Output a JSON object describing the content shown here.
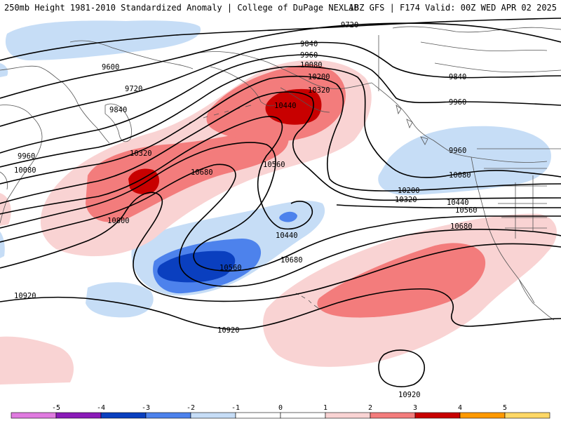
{
  "header": {
    "left": "250mb Height 1981-2010 Standardized Anomaly | College of DuPage NEXLAB",
    "right": "18Z GFS | F174 Valid: 00Z WED APR 02 2025"
  },
  "colors": {
    "neg5": "#e07be0",
    "neg4": "#8a1bb8",
    "neg3": "#0a3fbf",
    "neg2": "#4d82ec",
    "neg1": "#c6ddf6",
    "pos1": "#f9d3d3",
    "pos2": "#f37c7c",
    "pos3": "#c80000",
    "pos4": "#ff9900",
    "pos5": "#ffd866",
    "land": "#555555",
    "contour": "#000000"
  },
  "contour_labels": [
    {
      "id": "c9720-top",
      "text": "9720"
    },
    {
      "id": "c9840-top",
      "text": "9840"
    },
    {
      "id": "c9960-top",
      "text": "9960"
    },
    {
      "id": "c10080-top",
      "text": "10080"
    },
    {
      "id": "c10200-top",
      "text": "10200"
    },
    {
      "id": "c10320-top",
      "text": "10320"
    },
    {
      "id": "c10440-top",
      "text": "10440"
    },
    {
      "id": "c9600-left",
      "text": "9600"
    },
    {
      "id": "c9720-left",
      "text": "9720"
    },
    {
      "id": "c9840-left",
      "text": "9840"
    },
    {
      "id": "c9960-left",
      "text": "9960"
    },
    {
      "id": "c10080-left",
      "text": "10080"
    },
    {
      "id": "c10320-mid",
      "text": "10320"
    },
    {
      "id": "c10680-mid",
      "text": "10680"
    },
    {
      "id": "c10560-mid",
      "text": "10560"
    },
    {
      "id": "c10800-left",
      "text": "10800"
    },
    {
      "id": "c10440-low",
      "text": "10440"
    },
    {
      "id": "c10560-low",
      "text": "10560"
    },
    {
      "id": "c10680-low",
      "text": "10680"
    },
    {
      "id": "c10920-left",
      "text": "10920"
    },
    {
      "id": "c10920-mid",
      "text": "10920"
    },
    {
      "id": "c10920-bot",
      "text": "10920"
    },
    {
      "id": "c9840-right",
      "text": "9840"
    },
    {
      "id": "c9960-right",
      "text": "9960"
    },
    {
      "id": "c9960-east",
      "text": "9960"
    },
    {
      "id": "c10080-east",
      "text": "10080"
    },
    {
      "id": "c10200-east",
      "text": "10200"
    },
    {
      "id": "c10320-east",
      "text": "10320"
    },
    {
      "id": "c10440-east",
      "text": "10440"
    },
    {
      "id": "c10560-east",
      "text": "10560"
    },
    {
      "id": "c10680-east",
      "text": "10680"
    }
  ],
  "colorbar": {
    "ticks": [
      "-5",
      "-4",
      "-3",
      "-2",
      "-1",
      "0",
      "1",
      "2",
      "3",
      "4",
      "5"
    ]
  }
}
